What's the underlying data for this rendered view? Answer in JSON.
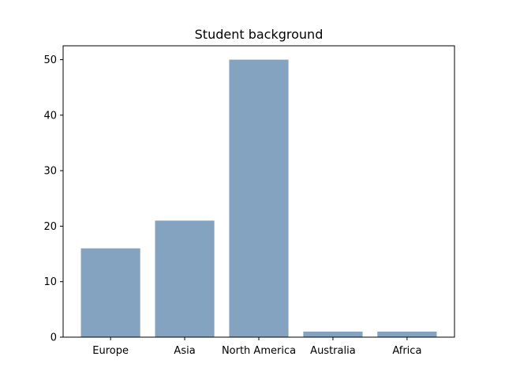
{
  "chart_data": {
    "type": "bar",
    "title": "Student background",
    "xlabel": "",
    "ylabel": "",
    "categories": [
      "Europe",
      "Asia",
      "North America",
      "Australia",
      "Africa"
    ],
    "values": [
      16,
      21,
      50,
      1,
      1
    ],
    "ylim": [
      0,
      52.5
    ],
    "yticks": [
      0,
      10,
      20,
      30,
      40,
      50
    ],
    "bar_color": "#83a3c1",
    "grid": false,
    "legend": "none"
  }
}
